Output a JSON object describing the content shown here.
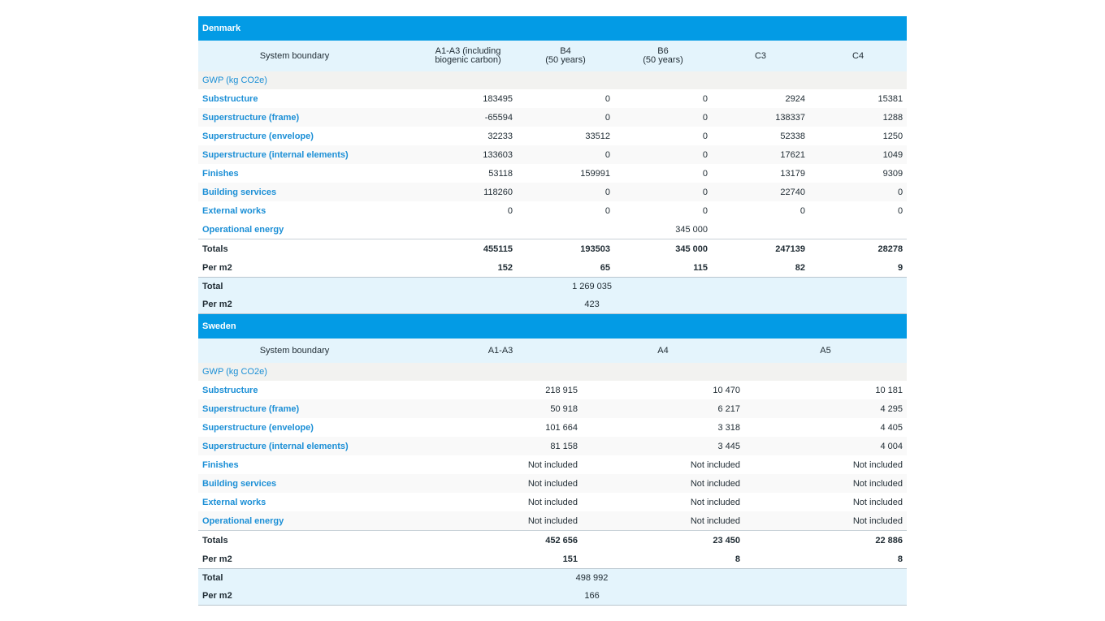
{
  "denmark": {
    "title": "Denmark",
    "headers": [
      "System boundary",
      "A1-A3 (including\nbiogenic carbon)",
      "B4\n(50 years)",
      "B6\n(50 years)",
      "C3",
      "C4"
    ],
    "gwp_label": "GWP (kg CO2e)",
    "rows": [
      {
        "label": "Substructure",
        "values": [
          "183495",
          "0",
          "0",
          "2924",
          "15381"
        ]
      },
      {
        "label": "Superstructure (frame)",
        "values": [
          "-65594",
          "0",
          "0",
          "138337",
          "1288"
        ]
      },
      {
        "label": "Superstructure (envelope)",
        "values": [
          "32233",
          "33512",
          "0",
          "52338",
          "1250"
        ]
      },
      {
        "label": "Superstructure (internal elements)",
        "values": [
          "133603",
          "0",
          "0",
          "17621",
          "1049"
        ]
      },
      {
        "label": "Finishes",
        "values": [
          "53118",
          "159991",
          "0",
          "13179",
          "9309"
        ]
      },
      {
        "label": "Building services",
        "values": [
          "118260",
          "0",
          "0",
          "22740",
          "0"
        ]
      },
      {
        "label": "External works",
        "values": [
          "0",
          "0",
          "0",
          "0",
          "0"
        ]
      }
    ],
    "operational": {
      "label": "Operational energy",
      "value": "345 000"
    },
    "totals": {
      "label": "Totals",
      "values": [
        "455115",
        "193503",
        "345 000",
        "247139",
        "28278"
      ]
    },
    "per_m2": {
      "label": "Per m2",
      "values": [
        "152",
        "65",
        "115",
        "82",
        "9"
      ]
    },
    "total": {
      "label": "Total",
      "value": "1 269 035"
    },
    "total_per_m2": {
      "label": "Per m2",
      "value": "423"
    }
  },
  "sweden": {
    "title": "Sweden",
    "headers": [
      "System boundary",
      "A1-A3",
      "A4",
      "A5"
    ],
    "gwp_label": "GWP (kg CO2e)",
    "rows": [
      {
        "label": "Substructure",
        "values": [
          "218 915",
          "10 470",
          "10 181"
        ]
      },
      {
        "label": "Superstructure (frame)",
        "values": [
          "50 918",
          "6 217",
          "4 295"
        ]
      },
      {
        "label": "Superstructure (envelope)",
        "values": [
          "101 664",
          "3 318",
          "4 405"
        ]
      },
      {
        "label": "Superstructure (internal elements)",
        "values": [
          "81 158",
          "3 445",
          "4 004"
        ]
      },
      {
        "label": "Finishes",
        "values": [
          "Not included",
          "Not included",
          "Not included"
        ]
      },
      {
        "label": "Building services",
        "values": [
          "Not included",
          "Not included",
          "Not included"
        ]
      },
      {
        "label": "External works",
        "values": [
          "Not included",
          "Not included",
          "Not included"
        ]
      },
      {
        "label": "Operational energy",
        "values": [
          "Not included",
          "Not included",
          "Not included"
        ]
      }
    ],
    "totals": {
      "label": "Totals",
      "values": [
        "452 656",
        "23 450",
        "22 886"
      ]
    },
    "per_m2": {
      "label": "Per m2",
      "values": [
        "151",
        "8",
        "8"
      ]
    },
    "total": {
      "label": "Total",
      "value": "498 992"
    },
    "total_per_m2": {
      "label": "Per m2",
      "value": "166"
    }
  },
  "colors": {
    "header_blue": "#039be5",
    "light_blue": "#e4f4fc",
    "label_blue": "#1b8fd6"
  }
}
